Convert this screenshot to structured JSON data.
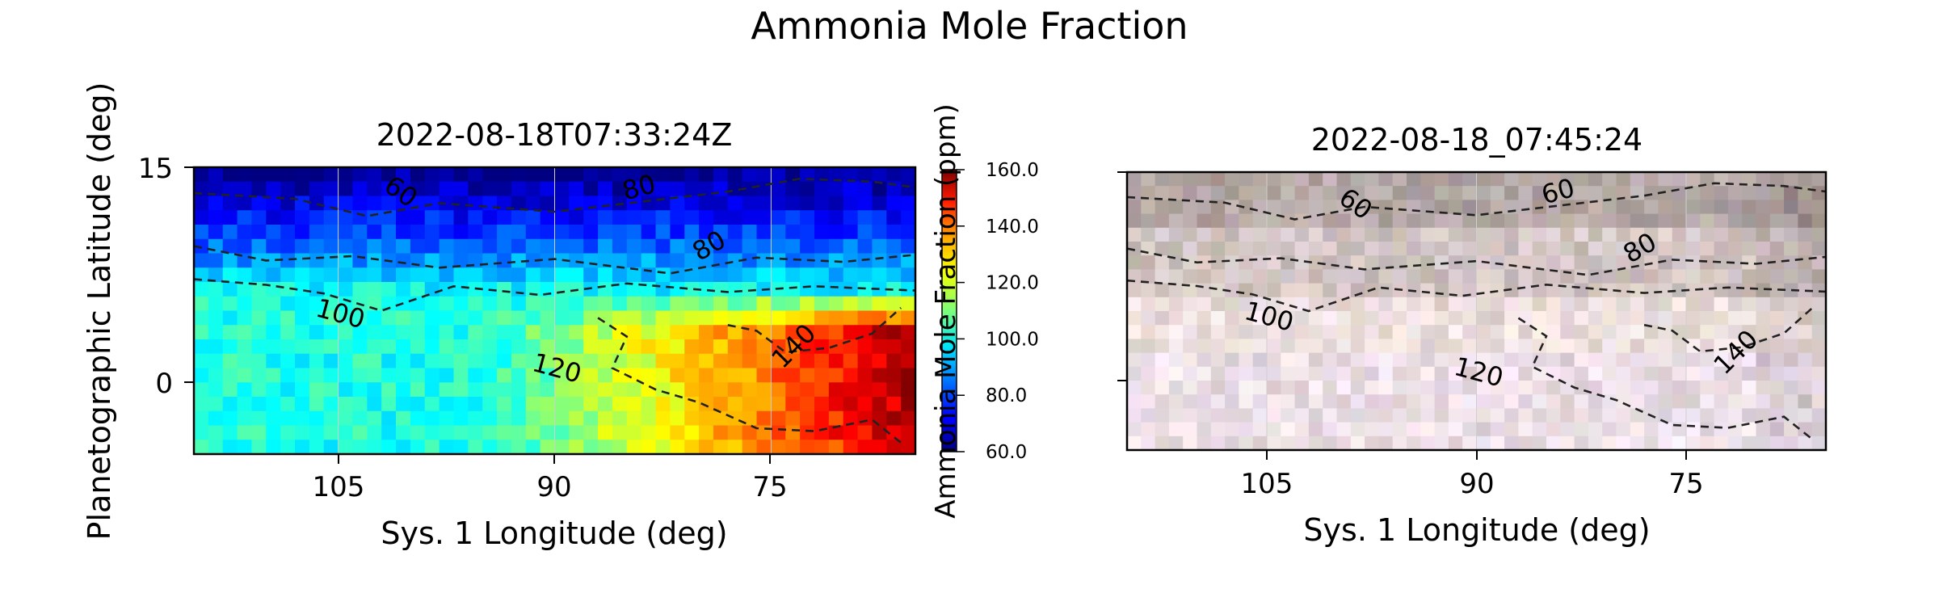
{
  "figure": {
    "suptitle": "Ammonia Mole Fraction"
  },
  "chart_data": [
    {
      "type": "heatmap",
      "title": "2022-08-18T07:33:24Z",
      "xlabel": "Sys. 1 Longitude (deg)",
      "ylabel": "Planetographic Latitude (deg)",
      "xlim": [
        115,
        65
      ],
      "ylim": [
        -5,
        15
      ],
      "x_ticks": [
        "105",
        "90",
        "75"
      ],
      "y_ticks": [
        "15",
        "0"
      ],
      "grid": true,
      "colormap": "jet",
      "value_range": [
        60,
        160
      ],
      "contour_levels": [
        "60",
        "80",
        "80",
        "100",
        "120",
        "140"
      ],
      "colorbar": {
        "label": "Ammonia Mole Fraction (ppm)",
        "ticks": [
          "160.0",
          "140.0",
          "120.0",
          "100.0",
          "80.0",
          "60.0"
        ],
        "range": [
          60,
          160
        ]
      }
    },
    {
      "type": "heatmap",
      "title": "2022-08-18_07:45:24",
      "xlabel": "Sys. 1 Longitude (deg)",
      "xlim": [
        115,
        65
      ],
      "ylim": [
        -5,
        15
      ],
      "x_ticks": [
        "105",
        "90",
        "75"
      ],
      "grid": true,
      "colormap": "RGB composite image",
      "contour_levels": [
        "60",
        "60",
        "80",
        "100",
        "120",
        "140"
      ]
    }
  ]
}
